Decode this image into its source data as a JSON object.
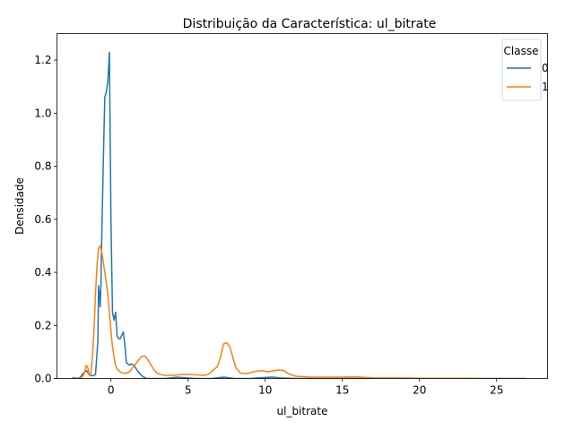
{
  "chart_data": {
    "type": "line",
    "title": "Distribuição da Característica: ul_bitrate",
    "xlabel": "ul_bitrate",
    "ylabel": "Densidade",
    "xlim": [
      -3.5,
      28.3
    ],
    "ylim": [
      0,
      1.3
    ],
    "xticks": [
      0,
      5,
      10,
      15,
      20,
      25
    ],
    "yticks": [
      0.0,
      0.2,
      0.4,
      0.6,
      0.8,
      1.0,
      1.2
    ],
    "xtick_labels": [
      "0",
      "5",
      "10",
      "15",
      "20",
      "25"
    ],
    "ytick_labels": [
      "0.0",
      "0.2",
      "0.4",
      "0.6",
      "0.8",
      "1.0",
      "1.2"
    ],
    "grid": false,
    "legend": {
      "title": "Classe",
      "placement": "top-right"
    },
    "series": [
      {
        "name": "0",
        "color": "#1f77b4",
        "x": [
          -2.5,
          -2.2,
          -2.0,
          -1.8,
          -1.6,
          -1.4,
          -1.2,
          -1.0,
          -0.85,
          -0.8,
          -0.75,
          -0.7,
          -0.65,
          -0.6,
          -0.5,
          -0.4,
          -0.3,
          -0.2,
          -0.1,
          0.0,
          0.1,
          0.2,
          0.3,
          0.4,
          0.5,
          0.6,
          0.8,
          0.9,
          1.0,
          1.2,
          1.3,
          1.5,
          1.7,
          2.0,
          2.3,
          2.6,
          3.0,
          3.5,
          4.0,
          4.3,
          4.7,
          5.5,
          6.5,
          7.0,
          7.3,
          7.6,
          8.0,
          9.0,
          10.0,
          10.5,
          11.0,
          12.0,
          15.0,
          20.0,
          25.0,
          26.9
        ],
        "y": [
          0.003,
          0.0,
          0.003,
          0.02,
          0.03,
          0.015,
          0.01,
          0.015,
          0.14,
          0.35,
          0.32,
          0.27,
          0.35,
          0.52,
          0.8,
          1.06,
          1.08,
          1.12,
          1.23,
          0.6,
          0.25,
          0.22,
          0.25,
          0.16,
          0.15,
          0.15,
          0.175,
          0.13,
          0.06,
          0.05,
          0.055,
          0.05,
          0.03,
          0.01,
          0.0,
          0.0,
          0.0,
          0.0,
          0.003,
          0.005,
          0.003,
          0.0,
          0.0,
          0.003,
          0.005,
          0.003,
          0.0,
          0.0,
          0.004,
          0.005,
          0.002,
          0.0,
          0.0,
          0.0,
          0.0,
          0.0
        ]
      },
      {
        "name": "1",
        "color": "#ff7f0e",
        "x": [
          -2.0,
          -1.8,
          -1.7,
          -1.6,
          -1.5,
          -1.4,
          -1.3,
          -1.2,
          -1.1,
          -1.0,
          -0.9,
          -0.8,
          -0.7,
          -0.6,
          -0.5,
          -0.4,
          -0.3,
          -0.2,
          -0.1,
          0.0,
          0.1,
          0.2,
          0.3,
          0.4,
          0.6,
          0.8,
          1.0,
          1.2,
          1.4,
          1.6,
          1.8,
          2.0,
          2.2,
          2.4,
          2.6,
          2.8,
          3.0,
          3.2,
          3.5,
          4.0,
          4.5,
          5.0,
          5.5,
          6.0,
          6.3,
          6.6,
          6.9,
          7.1,
          7.3,
          7.5,
          7.7,
          7.9,
          8.1,
          8.4,
          8.8,
          9.2,
          9.5,
          9.8,
          10.2,
          10.6,
          10.9,
          11.2,
          11.5,
          12.0,
          13.0,
          14.0,
          15.0,
          15.5,
          16.0,
          16.5,
          17.0,
          18.0,
          19.0,
          20.0,
          21.0,
          22.0,
          23.0,
          24.0
        ],
        "y": [
          0.0,
          0.01,
          0.025,
          0.05,
          0.04,
          0.01,
          0.02,
          0.08,
          0.18,
          0.32,
          0.43,
          0.49,
          0.5,
          0.48,
          0.44,
          0.4,
          0.36,
          0.32,
          0.25,
          0.18,
          0.12,
          0.08,
          0.05,
          0.035,
          0.025,
          0.02,
          0.02,
          0.025,
          0.04,
          0.055,
          0.07,
          0.083,
          0.085,
          0.07,
          0.05,
          0.032,
          0.02,
          0.015,
          0.012,
          0.012,
          0.015,
          0.015,
          0.014,
          0.012,
          0.015,
          0.03,
          0.045,
          0.08,
          0.13,
          0.135,
          0.12,
          0.08,
          0.04,
          0.02,
          0.018,
          0.025,
          0.028,
          0.03,
          0.025,
          0.03,
          0.032,
          0.03,
          0.018,
          0.008,
          0.005,
          0.005,
          0.005,
          0.006,
          0.006,
          0.004,
          0.002,
          0.002,
          0.002,
          0.001,
          0.001,
          0.001,
          0.001,
          0.0
        ]
      }
    ]
  }
}
